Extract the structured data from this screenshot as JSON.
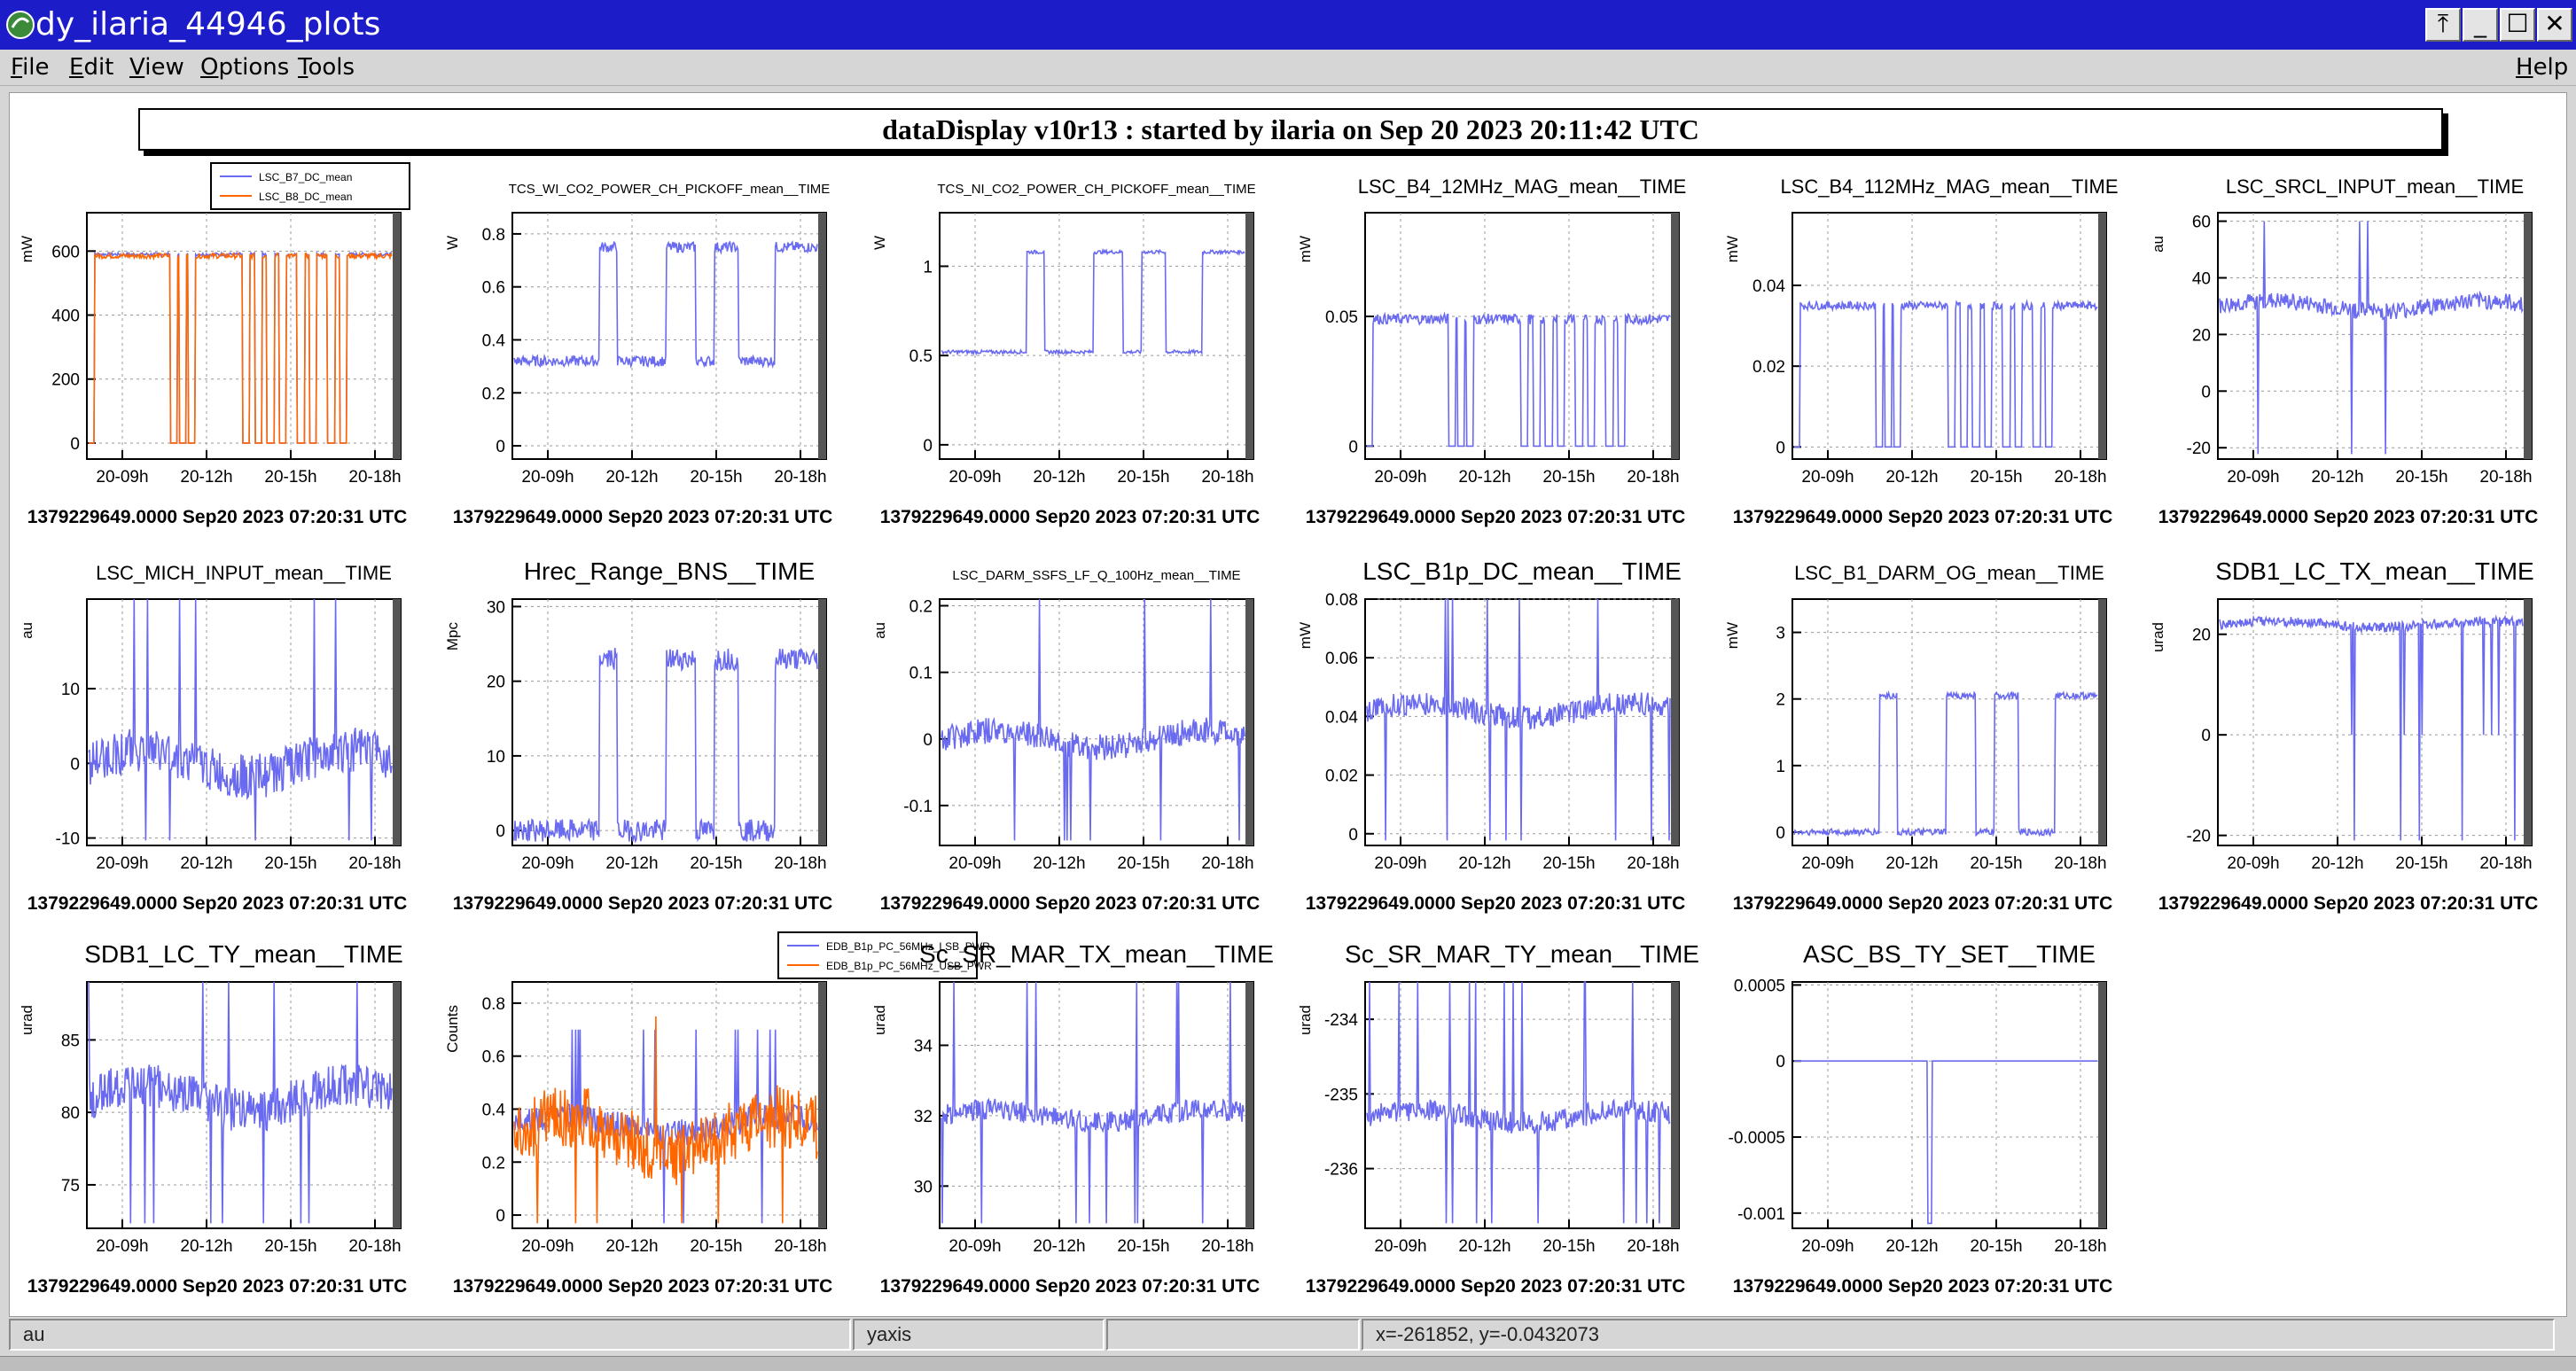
{
  "window": {
    "title": "dy_ilaria_44946_plots",
    "controls": [
      "⤒",
      "_",
      "☐",
      "✕"
    ]
  },
  "menu": {
    "items": [
      "File",
      "Edit",
      "View",
      "Options",
      "Tools"
    ],
    "help": "Help"
  },
  "header": {
    "text": "dataDisplay v10r13 : started by ilaria on Sep 20 2023 20:11:42 UTC"
  },
  "footer_text": "1379229649.0000 Sep20 2023 07:20:31 UTC",
  "statusbar": {
    "field1": "au",
    "field2": "yaxis",
    "field3": "",
    "field4": "x=-261852, y=-0.0432073"
  },
  "colors": {
    "blue": "#6a6af0",
    "orange": "#ff6600",
    "titlebar": "#1c1cc8"
  },
  "chart_data": [
    {
      "type": "line",
      "title": "",
      "ylabel": "mW",
      "yticks": [
        "0",
        "200",
        "400",
        "600"
      ],
      "ylim": [
        -50,
        720
      ],
      "xticks": [
        "20-09h",
        "20-12h",
        "20-15h",
        "20-18h"
      ],
      "legend": [
        "LSC_B7_DC_mean",
        "LSC_B8_DC_mean"
      ],
      "series": [
        {
          "name": "LSC_B7_DC_mean",
          "color": "#6a6af0",
          "kind": "step",
          "base": 590,
          "low": 0,
          "noise": 5
        },
        {
          "name": "LSC_B8_DC_mean",
          "color": "#ff6600",
          "kind": "step",
          "base": 585,
          "low": 0,
          "noise": 8
        }
      ]
    },
    {
      "type": "line",
      "title": "TCS_WI_CO2_POWER_CH_PICKOFF_mean__TIME",
      "ylabel": "W",
      "yticks": [
        "0",
        "0.2",
        "0.4",
        "0.6",
        "0.8"
      ],
      "ylim": [
        -0.05,
        0.88
      ],
      "xticks": [
        "20-09h",
        "20-12h",
        "20-15h",
        "20-18h"
      ],
      "series": [
        {
          "color": "#6a6af0",
          "kind": "square",
          "base": 0.32,
          "high": 0.75,
          "noise": 0.02
        }
      ]
    },
    {
      "type": "line",
      "title": "TCS_NI_CO2_POWER_CH_PICKOFF_mean__TIME",
      "ylabel": "W",
      "yticks": [
        "0",
        "0.5",
        "1"
      ],
      "ylim": [
        -0.08,
        1.3
      ],
      "xticks": [
        "20-09h",
        "20-12h",
        "20-15h",
        "20-18h"
      ],
      "series": [
        {
          "color": "#6a6af0",
          "kind": "square",
          "base": 0.52,
          "high": 1.08,
          "noise": 0.01
        }
      ]
    },
    {
      "type": "line",
      "title": "LSC_B4_12MHz_MAG_mean__TIME",
      "ylabel": "mW",
      "yticks": [
        "0",
        "0.05"
      ],
      "ylim": [
        -0.005,
        0.09
      ],
      "xticks": [
        "20-09h",
        "20-12h",
        "20-15h",
        "20-18h"
      ],
      "series": [
        {
          "color": "#6a6af0",
          "kind": "step",
          "base": 0.049,
          "low": 0,
          "noise": 0.002
        }
      ]
    },
    {
      "type": "line",
      "title": "LSC_B4_112MHz_MAG_mean__TIME",
      "ylabel": "mW",
      "yticks": [
        "0",
        "0.02",
        "0.04"
      ],
      "ylim": [
        -0.003,
        0.058
      ],
      "xticks": [
        "20-09h",
        "20-12h",
        "20-15h",
        "20-18h"
      ],
      "series": [
        {
          "color": "#6a6af0",
          "kind": "step",
          "base": 0.035,
          "low": 0,
          "noise": 0.001
        }
      ]
    },
    {
      "type": "line",
      "title": "LSC_SRCL_INPUT_mean__TIME",
      "ylabel": "au",
      "yticks": [
        "-20",
        "0",
        "20",
        "40",
        "60"
      ],
      "ylim": [
        -24,
        63
      ],
      "xticks": [
        "20-09h",
        "20-12h",
        "20-15h",
        "20-18h"
      ],
      "series": [
        {
          "color": "#6a6af0",
          "kind": "noisy",
          "base": 30,
          "noise": 3,
          "spike": 60
        }
      ]
    },
    {
      "type": "line",
      "title": "LSC_MICH_INPUT_mean__TIME",
      "ylabel": "au",
      "yticks": [
        "-10",
        "0",
        "10"
      ],
      "ylim": [
        -11,
        22
      ],
      "xticks": [
        "20-09h",
        "20-12h",
        "20-15h",
        "20-18h"
      ],
      "series": [
        {
          "color": "#6a6af0",
          "kind": "noisy",
          "base": 0,
          "noise": 3,
          "spike": 22
        }
      ]
    },
    {
      "type": "line",
      "title": "Hrec_Range_BNS__TIME",
      "ylabel": "Mpc",
      "yticks": [
        "0",
        "10",
        "20",
        "30"
      ],
      "ylim": [
        -2,
        31
      ],
      "xticks": [
        "20-09h",
        "20-12h",
        "20-15h",
        "20-18h"
      ],
      "series": [
        {
          "color": "#6a6af0",
          "kind": "square",
          "base": 0,
          "high": 23,
          "noise": 1.5
        }
      ]
    },
    {
      "type": "line",
      "title": "LSC_DARM_SSFS_LF_Q_100Hz_mean__TIME",
      "ylabel": "au",
      "yticks": [
        "-0.1",
        "0",
        "0.1",
        "0.2"
      ],
      "ylim": [
        -0.16,
        0.21
      ],
      "xticks": [
        "20-09h",
        "20-12h",
        "20-15h",
        "20-18h"
      ],
      "series": [
        {
          "color": "#6a6af0",
          "kind": "noisy",
          "base": 0,
          "noise": 0.02,
          "spike": 0.21
        }
      ]
    },
    {
      "type": "line",
      "title": "LSC_B1p_DC_mean__TIME",
      "ylabel": "mW",
      "yticks": [
        "0",
        "0.02",
        "0.04",
        "0.06",
        "0.08"
      ],
      "ylim": [
        -0.004,
        0.08
      ],
      "xticks": [
        "20-09h",
        "20-12h",
        "20-15h",
        "20-18h"
      ],
      "series": [
        {
          "color": "#6a6af0",
          "kind": "noisy",
          "base": 0.042,
          "noise": 0.004,
          "spike": 0.08
        }
      ]
    },
    {
      "type": "line",
      "title": "LSC_B1_DARM_OG_mean__TIME",
      "ylabel": "mW",
      "yticks": [
        "0",
        "1",
        "2",
        "3"
      ],
      "ylim": [
        -0.2,
        3.5
      ],
      "xticks": [
        "20-09h",
        "20-12h",
        "20-15h",
        "20-18h"
      ],
      "series": [
        {
          "color": "#6a6af0",
          "kind": "square",
          "base": 0,
          "high": 2.05,
          "noise": 0.05
        }
      ]
    },
    {
      "type": "line",
      "title": "SDB1_LC_TX_mean__TIME",
      "ylabel": "urad",
      "yticks": [
        "-20",
        "0",
        "20"
      ],
      "ylim": [
        -22,
        27
      ],
      "xticks": [
        "20-09h",
        "20-12h",
        "20-15h",
        "20-18h"
      ],
      "series": [
        {
          "color": "#6a6af0",
          "kind": "noisy",
          "base": 22,
          "noise": 1,
          "spike": 0
        }
      ]
    },
    {
      "type": "line",
      "title": "SDB1_LC_TY_mean__TIME",
      "ylabel": "urad",
      "yticks": [
        "75",
        "80",
        "85"
      ],
      "ylim": [
        72,
        89
      ],
      "xticks": [
        "20-09h",
        "20-12h",
        "20-15h",
        "20-18h"
      ],
      "series": [
        {
          "color": "#6a6af0",
          "kind": "noisy",
          "base": 81,
          "noise": 1.5,
          "spike": 89
        }
      ]
    },
    {
      "type": "line",
      "title": "",
      "ylabel": "Counts",
      "yticks": [
        "0",
        "0.2",
        "0.4",
        "0.6",
        "0.8"
      ],
      "ylim": [
        -0.05,
        0.88
      ],
      "xticks": [
        "20-09h",
        "20-12h",
        "20-15h",
        "20-18h"
      ],
      "legend": [
        "EDB_B1p_PC_56MHz_LSB_PWR",
        "EDB_B1p_PC_56MHz_USB_PWR"
      ],
      "series": [
        {
          "name": "EDB_B1p_PC_56MHz_LSB_PWR",
          "color": "#6a6af0",
          "kind": "noisy",
          "base": 0.34,
          "noise": 0.05,
          "spike": 0.7
        },
        {
          "name": "EDB_B1p_PC_56MHz_USB_PWR",
          "color": "#ff6600",
          "kind": "noisy",
          "base": 0.3,
          "noise": 0.12,
          "spike": 0.75
        }
      ]
    },
    {
      "type": "line",
      "title": "Sc_SR_MAR_TX_mean__TIME",
      "ylabel": "urad",
      "yticks": [
        "30",
        "32",
        "34"
      ],
      "ylim": [
        28.8,
        35.8
      ],
      "xticks": [
        "20-09h",
        "20-12h",
        "20-15h",
        "20-18h"
      ],
      "series": [
        {
          "color": "#6a6af0",
          "kind": "noisy",
          "base": 32,
          "noise": 0.3,
          "spike": 35.8
        }
      ]
    },
    {
      "type": "line",
      "title": "Sc_SR_MAR_TY_mean__TIME",
      "ylabel": "urad",
      "yticks": [
        "-236",
        "-235",
        "-234"
      ],
      "ylim": [
        -236.8,
        -233.5
      ],
      "xticks": [
        "20-09h",
        "20-12h",
        "20-15h",
        "20-18h"
      ],
      "series": [
        {
          "color": "#6a6af0",
          "kind": "noisy",
          "base": -235.3,
          "noise": 0.15,
          "spike": -233.5
        }
      ]
    },
    {
      "type": "line",
      "title": "ASC_BS_TY_SET__TIME",
      "ylabel": "",
      "yticks": [
        "-0.001",
        "-0.0005",
        "0",
        "0.0005"
      ],
      "ylim": [
        -0.0011,
        0.00052
      ],
      "xticks": [
        "20-09h",
        "20-12h",
        "20-15h",
        "20-18h"
      ],
      "series": [
        {
          "color": "#6a6af0",
          "kind": "flat",
          "base": 0
        }
      ]
    }
  ]
}
